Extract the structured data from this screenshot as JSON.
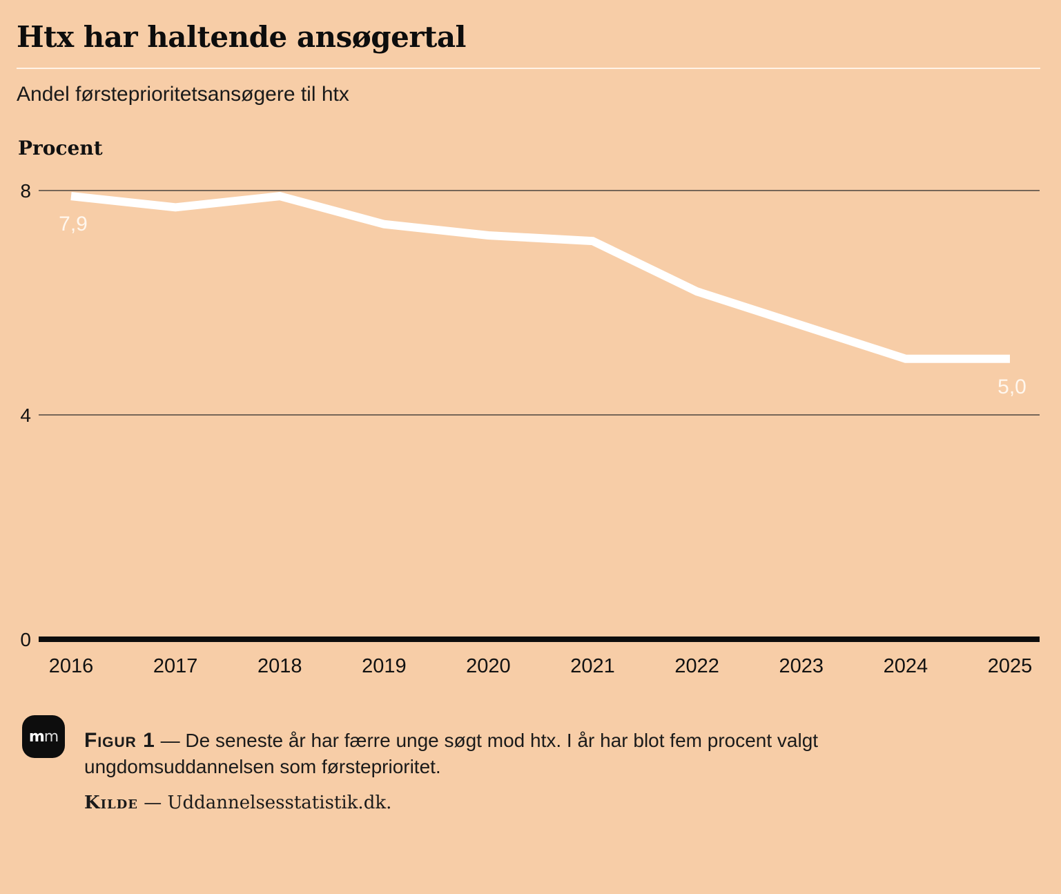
{
  "header": {
    "title": "Htx har haltende ansøgertal",
    "subtitle": "Andel førsteprioritetsansøgere til htx"
  },
  "chart_data": {
    "type": "line",
    "ylabel": "Procent",
    "xlabel": "",
    "ylim": [
      0,
      8
    ],
    "yticks": [
      "0",
      "4",
      "8"
    ],
    "grid": true,
    "categories": [
      "2016",
      "2017",
      "2018",
      "2019",
      "2020",
      "2021",
      "2022",
      "2023",
      "2024",
      "2025"
    ],
    "series": [
      {
        "values": [
          7.9,
          7.7,
          7.9,
          7.4,
          7.2,
          7.1,
          6.2,
          5.6,
          5.0,
          5.0
        ]
      }
    ],
    "annotations": [
      {
        "index": 0,
        "text": "7,9"
      },
      {
        "index": 9,
        "text": "5,0"
      }
    ],
    "line_color": "#ffffff",
    "background": "#f7cda7"
  },
  "footer": {
    "logo_text_1": "m",
    "logo_text_2": "m",
    "figure_label": "Figur 1",
    "dash": " — ",
    "caption": "De seneste år har færre unge søgt mod htx. I år har blot fem procent valgt ungdomsuddannelsen som førsteprioritet.",
    "source_label": "Kilde",
    "source_text": "Uddannelsesstatistik.dk."
  }
}
